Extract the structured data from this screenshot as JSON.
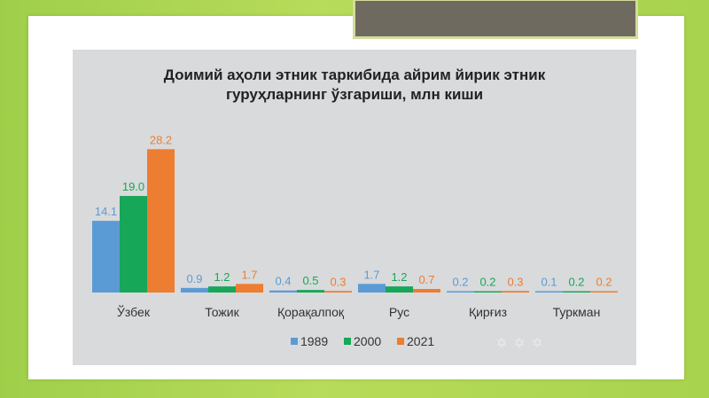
{
  "chart_data": {
    "type": "bar",
    "title": "Доимий аҳоли этник таркибида айрим йирик этник\nгуруҳларнинг ўзгариши, млн киши",
    "categories": [
      "Ўзбек",
      "Тожик",
      "Қорақалпоқ",
      "Рус",
      "Қирғиз",
      "Туркман"
    ],
    "series": [
      {
        "name": "1989",
        "values": [
          14.1,
          0.9,
          0.4,
          1.7,
          0.2,
          0.1
        ],
        "labels": [
          "14.1",
          "0.9",
          "0.4",
          "1.7",
          "0.2",
          "0.1"
        ],
        "color": "#5b9bd5"
      },
      {
        "name": "2000",
        "values": [
          19.0,
          1.2,
          0.5,
          1.2,
          0.2,
          0.2
        ],
        "labels": [
          "19.0",
          "1.2",
          "0.5",
          "1.2",
          "0.2",
          "0.2"
        ],
        "color": "#17a758"
      },
      {
        "name": "2021",
        "values": [
          28.2,
          1.7,
          0.3,
          0.7,
          0.3,
          0.2
        ],
        "labels": [
          "28.2",
          "1.7",
          "0.3",
          "0.7",
          "0.3",
          "0.2"
        ],
        "color": "#ed7d31"
      }
    ],
    "ylim": [
      0,
      30
    ],
    "grid": false,
    "legend": "bottom"
  }
}
